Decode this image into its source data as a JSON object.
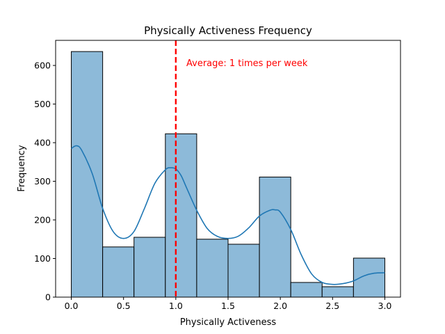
{
  "chart_data": {
    "type": "bar",
    "title": "Physically Activeness Frequency",
    "xlabel": "Physically Activeness",
    "ylabel": "Frequency",
    "xlim": [
      -0.15,
      3.15
    ],
    "ylim": [
      0,
      665
    ],
    "xticks": [
      0.0,
      0.5,
      1.0,
      1.5,
      2.0,
      2.5,
      3.0
    ],
    "xtick_labels": [
      "0.0",
      "0.5",
      "1.0",
      "1.5",
      "2.0",
      "2.5",
      "3.0"
    ],
    "yticks": [
      0,
      100,
      200,
      300,
      400,
      500,
      600
    ],
    "ytick_labels": [
      "0",
      "100",
      "200",
      "300",
      "400",
      "500",
      "600"
    ],
    "bin_edges": [
      0.0,
      0.3,
      0.6,
      0.9,
      1.2,
      1.5,
      1.8,
      2.1,
      2.4,
      2.7,
      3.0
    ],
    "values": [
      636,
      130,
      155,
      423,
      150,
      137,
      311,
      38,
      27,
      101
    ],
    "kde": {
      "x": [
        0.0,
        0.05,
        0.1,
        0.2,
        0.3,
        0.4,
        0.5,
        0.6,
        0.7,
        0.8,
        0.9,
        0.95,
        1.0,
        1.05,
        1.1,
        1.2,
        1.3,
        1.4,
        1.5,
        1.6,
        1.7,
        1.8,
        1.9,
        1.95,
        2.0,
        2.1,
        2.2,
        2.3,
        2.4,
        2.5,
        2.6,
        2.7,
        2.8,
        2.9,
        3.0
      ],
      "y": [
        385,
        392,
        380,
        320,
        230,
        170,
        152,
        170,
        230,
        295,
        330,
        335,
        332,
        315,
        285,
        225,
        178,
        157,
        152,
        158,
        180,
        210,
        225,
        226,
        220,
        175,
        110,
        60,
        38,
        33,
        35,
        42,
        55,
        62,
        63
      ]
    },
    "average_line": {
      "x": 1.0,
      "label": "Average: 1 times per week"
    },
    "grid": false,
    "legend": "none",
    "colors": {
      "bar_fill": "#8dbad9",
      "bar_edge": "#000000",
      "kde_line": "#1f77b4",
      "average_line": "#ff0000",
      "annotation": "#ff0000"
    }
  }
}
